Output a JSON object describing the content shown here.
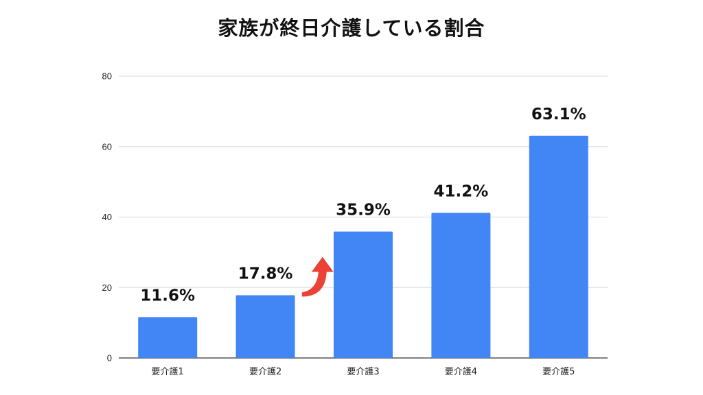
{
  "chart_data": {
    "type": "bar",
    "title": "家族が終日介護している割合",
    "categories": [
      "要介護1",
      "要介護2",
      "要介護3",
      "要介護4",
      "要介護5"
    ],
    "values": [
      11.6,
      17.8,
      35.9,
      41.2,
      63.1
    ],
    "data_labels": [
      "11.6%",
      "17.8%",
      "35.9%",
      "41.2%",
      "63.1%"
    ],
    "yticks": [
      0,
      20,
      40,
      60,
      80
    ],
    "ylim": [
      0,
      80
    ],
    "xlabel": "",
    "ylabel": "",
    "grid": true,
    "bar_color": "#4285f4",
    "annotation": {
      "type": "arrow-up-right-icon",
      "between": [
        "要介護2",
        "要介護3"
      ],
      "color": "#ea4335"
    }
  }
}
